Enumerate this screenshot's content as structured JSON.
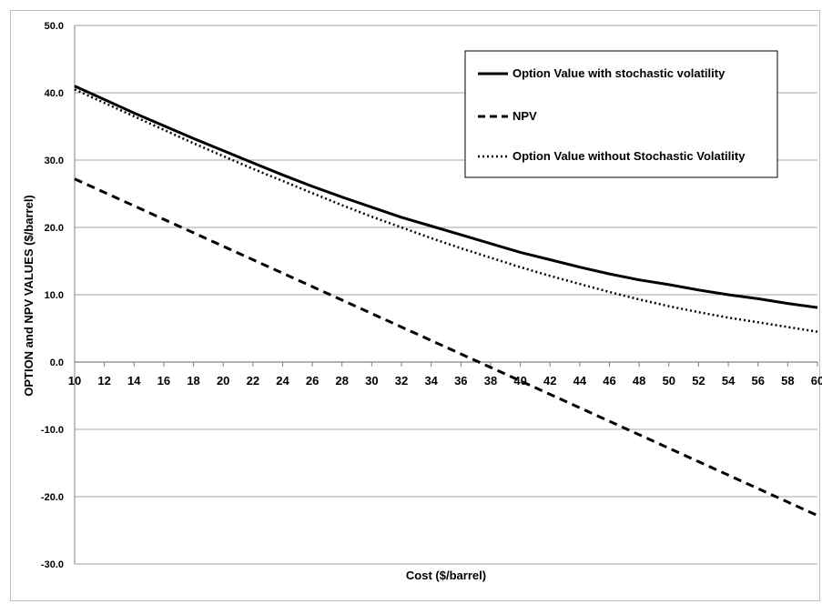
{
  "chart_data": {
    "type": "line",
    "xlabel": "Cost ($/barrel)",
    "ylabel": "OPTION and NPV VALUES ($/barrel)",
    "xlim": [
      10,
      60
    ],
    "ylim": [
      -30,
      50
    ],
    "x_ticks": [
      "10",
      "12",
      "14",
      "16",
      "18",
      "20",
      "22",
      "24",
      "26",
      "28",
      "30",
      "32",
      "34",
      "36",
      "38",
      "40",
      "42",
      "44",
      "46",
      "48",
      "50",
      "52",
      "54",
      "56",
      "58",
      "60"
    ],
    "y_ticks": [
      "50.0",
      "40.0",
      "30.0",
      "20.0",
      "10.0",
      "0.0",
      "-10.0",
      "-20.0",
      "-30.0"
    ],
    "grid": "horizontal",
    "legend_position": "top-right",
    "x": [
      10,
      12,
      14,
      16,
      18,
      20,
      22,
      24,
      26,
      28,
      30,
      32,
      34,
      36,
      38,
      40,
      42,
      44,
      46,
      48,
      50,
      52,
      54,
      56,
      58,
      60
    ],
    "series": [
      {
        "name": "Option Value with stochastic volatility",
        "style": "solid",
        "values": [
          41.0,
          39.0,
          37.0,
          35.1,
          33.2,
          31.4,
          29.6,
          27.8,
          26.1,
          24.5,
          23.0,
          21.5,
          20.2,
          18.9,
          17.6,
          16.3,
          15.2,
          14.1,
          13.1,
          12.2,
          11.5,
          10.7,
          10.0,
          9.4,
          8.7,
          8.1
        ]
      },
      {
        "name": "NPV",
        "style": "dashed",
        "values": [
          27.2,
          25.2,
          23.2,
          21.2,
          19.2,
          17.2,
          15.2,
          13.2,
          11.2,
          9.2,
          7.2,
          5.2,
          3.2,
          1.2,
          -0.8,
          -2.8,
          -4.8,
          -6.8,
          -8.8,
          -10.8,
          -12.8,
          -14.8,
          -16.8,
          -18.8,
          -20.8,
          -22.8
        ]
      },
      {
        "name": "Option Value without Stochastic Volatility",
        "style": "dotted",
        "values": [
          40.5,
          38.5,
          36.5,
          34.5,
          32.5,
          30.6,
          28.7,
          26.9,
          25.1,
          23.3,
          21.6,
          20.0,
          18.4,
          16.9,
          15.5,
          14.1,
          12.8,
          11.6,
          10.4,
          9.3,
          8.3,
          7.4,
          6.6,
          5.9,
          5.2,
          4.5
        ]
      }
    ],
    "colors": {
      "lines": "#000000",
      "grid": "#a6a6a6",
      "axis": "#808080"
    }
  }
}
